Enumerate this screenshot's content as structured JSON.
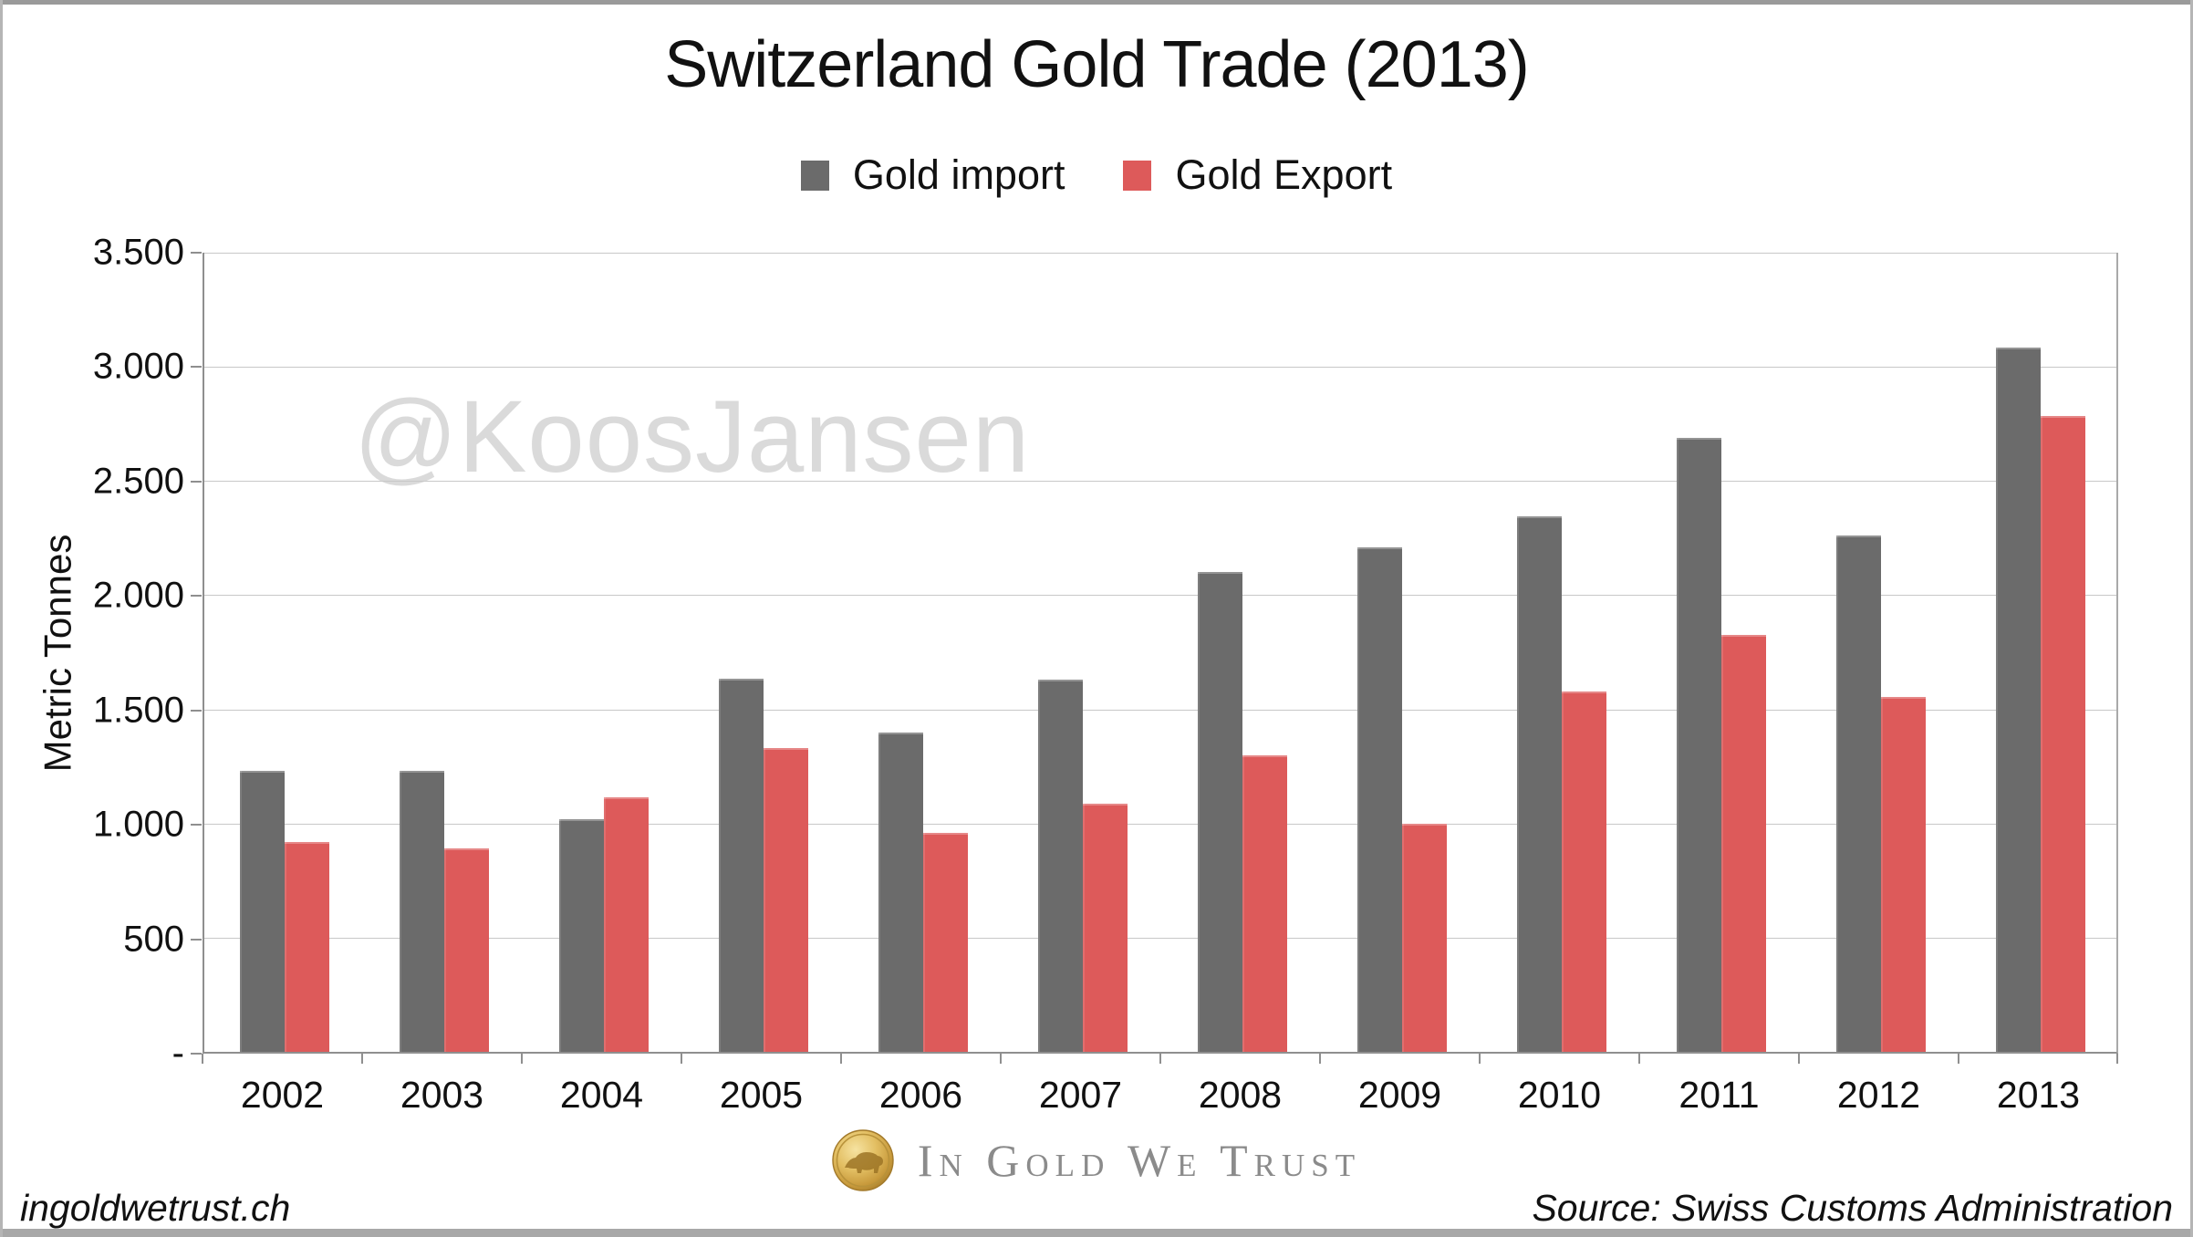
{
  "page": {
    "watermark": "@KoosJansen",
    "footer_left": "ingoldwetrust.ch",
    "footer_right": "Source: Swiss Customs Administration",
    "brand_text": "In Gold We Trust"
  },
  "chart_data": {
    "type": "bar",
    "title": "Switzerland Gold Trade (2013)",
    "ylabel": "Metric Tonnes",
    "categories": [
      "2002",
      "2003",
      "2004",
      "2005",
      "2006",
      "2007",
      "2008",
      "2009",
      "2010",
      "2011",
      "2012",
      "2013"
    ],
    "series": [
      {
        "name": "Gold import",
        "color": "#6B6B6B",
        "values": [
          1230,
          1230,
          1020,
          1635,
          1400,
          1630,
          2100,
          2210,
          2345,
          2690,
          2260,
          3085
        ]
      },
      {
        "name": "Gold Export",
        "color": "#DD5A5A",
        "values": [
          920,
          890,
          1115,
          1330,
          960,
          1085,
          1300,
          1000,
          1580,
          1825,
          1555,
          2785
        ]
      }
    ],
    "ylim": [
      0,
      3500
    ],
    "ytick_step": 500,
    "ytick_labels_top_to_bottom": [
      "3.500",
      "3.000",
      "2.500",
      "2.000",
      "1.500",
      "1.000",
      "500",
      "-"
    ],
    "grid": true,
    "legend_position": "top-center"
  }
}
